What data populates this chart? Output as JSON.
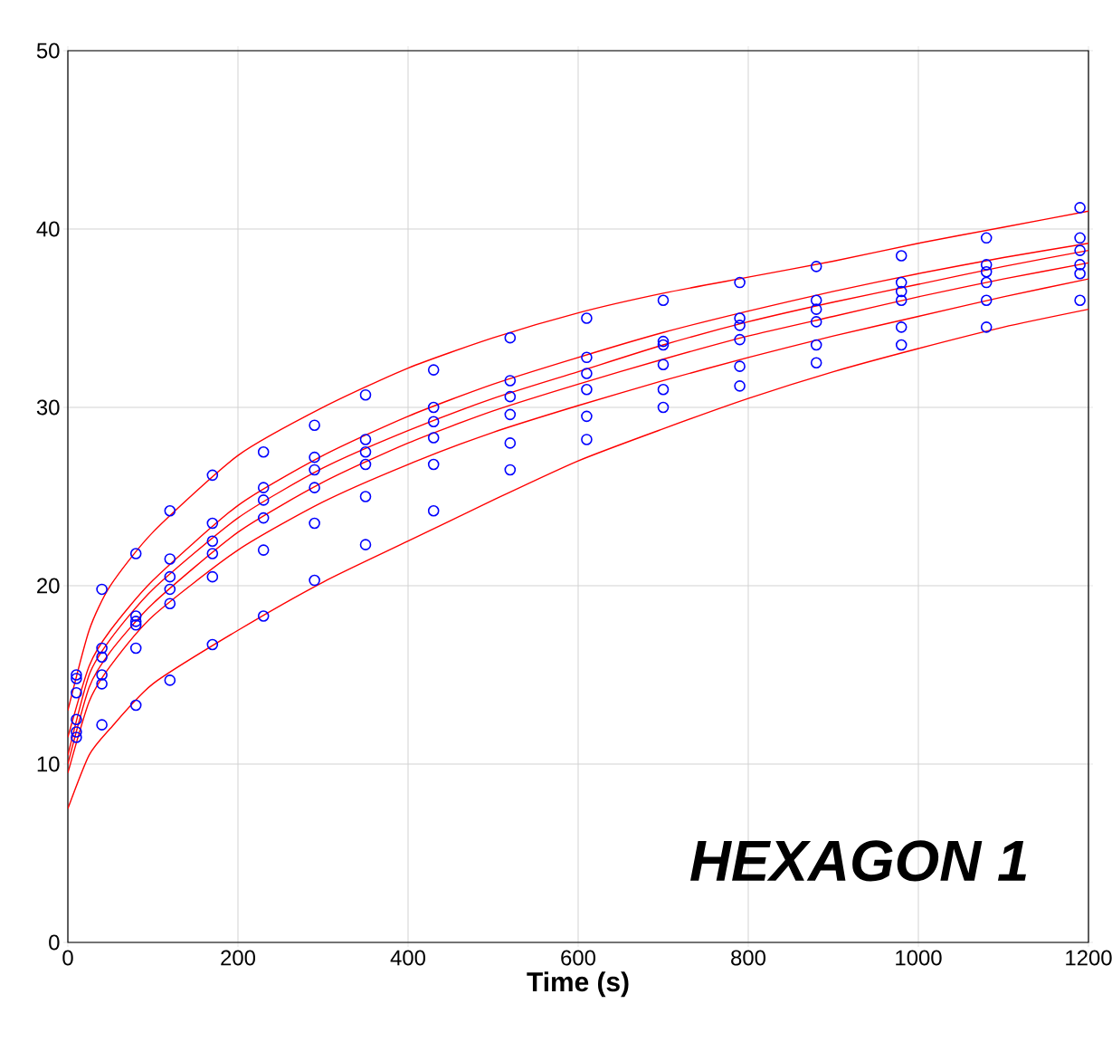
{
  "chart_data": {
    "type": "scatter",
    "xlabel": "Time (s)",
    "annotations": [
      "HEXAGON 1"
    ],
    "xlim": [
      0,
      1200
    ],
    "ylim": [
      0,
      50
    ],
    "xticks": [
      0,
      200,
      400,
      600,
      800,
      1000,
      1200
    ],
    "yticks": [
      0,
      10,
      20,
      30,
      40,
      50
    ],
    "grid": true,
    "series": [
      {
        "marker": "circle",
        "color": "#0000ff",
        "x": [
          10,
          40,
          80,
          120,
          170,
          230,
          290,
          350,
          430,
          520,
          610,
          700,
          790,
          880,
          980,
          1080,
          1190
        ],
        "values": [
          15,
          19.8,
          21.8,
          24.2,
          26.2,
          27.5,
          29,
          30.7,
          32.1,
          33.9,
          35,
          36,
          37,
          37.9,
          38.5,
          39.5,
          41.2
        ]
      },
      {
        "marker": "circle",
        "color": "#0000ff",
        "x": [
          10,
          40,
          80,
          120,
          170,
          230,
          290,
          350,
          430,
          520,
          610,
          700,
          790,
          880,
          980,
          1080,
          1190
        ],
        "values": [
          14.8,
          16.5,
          18.3,
          21.5,
          23.5,
          25.5,
          27.2,
          28.2,
          30,
          31.5,
          32.8,
          33.7,
          35,
          36,
          37,
          38,
          39.5
        ]
      },
      {
        "marker": "circle",
        "color": "#0000ff",
        "x": [
          10,
          40,
          80,
          120,
          170,
          230,
          290,
          350,
          430,
          520,
          610,
          700,
          790,
          880,
          980,
          1080,
          1190
        ],
        "values": [
          14,
          16,
          18,
          20.5,
          22.5,
          24.8,
          26.5,
          27.5,
          29.2,
          30.6,
          31.9,
          33.5,
          34.6,
          35.5,
          36.5,
          37.6,
          38.8
        ]
      },
      {
        "marker": "circle",
        "color": "#0000ff",
        "x": [
          10,
          40,
          80,
          120,
          170,
          230,
          290,
          350,
          430,
          520,
          610,
          700,
          790,
          880,
          980,
          1080,
          1190
        ],
        "values": [
          12.5,
          15,
          17.8,
          19.8,
          21.8,
          23.8,
          25.5,
          26.8,
          28.3,
          29.6,
          31,
          32.4,
          33.8,
          34.8,
          36,
          37,
          38
        ]
      },
      {
        "marker": "circle",
        "color": "#0000ff",
        "x": [
          10,
          40,
          80,
          120,
          170,
          230,
          290,
          350,
          430,
          520,
          610,
          700,
          790,
          880,
          980,
          1080,
          1190
        ],
        "values": [
          11.8,
          14.5,
          16.5,
          19,
          20.5,
          22,
          23.5,
          25,
          26.8,
          28,
          29.5,
          31,
          32.3,
          33.5,
          34.5,
          36,
          37.5
        ]
      },
      {
        "marker": "circle",
        "color": "#0000ff",
        "x": [
          10,
          40,
          80,
          120,
          170,
          230,
          290,
          350,
          430,
          520,
          610,
          700,
          790,
          880,
          980,
          1080,
          1190
        ],
        "values": [
          11.5,
          12.2,
          13.3,
          14.7,
          16.7,
          18.3,
          20.3,
          22.3,
          24.2,
          26.5,
          28.2,
          30,
          31.2,
          32.5,
          33.5,
          34.5,
          36
        ]
      },
      {
        "type": "line",
        "marker": "none",
        "color": "#ff0000",
        "x": [
          0,
          25,
          50,
          100,
          200,
          300,
          400,
          500,
          600,
          700,
          800,
          900,
          1000,
          1100,
          1200
        ],
        "values": [
          13,
          17.5,
          20,
          23,
          27.3,
          30,
          32.2,
          33.9,
          35.3,
          36.4,
          37.3,
          38.2,
          39.2,
          40.1,
          41
        ]
      },
      {
        "type": "line",
        "marker": "none",
        "color": "#ff0000",
        "x": [
          0,
          25,
          50,
          100,
          200,
          300,
          400,
          500,
          600,
          700,
          800,
          900,
          1000,
          1100,
          1200
        ],
        "values": [
          11.5,
          15.5,
          17.5,
          20.3,
          24.5,
          27.3,
          29.5,
          31.3,
          32.8,
          34.2,
          35.4,
          36.5,
          37.5,
          38.4,
          39.2
        ]
      },
      {
        "type": "line",
        "marker": "none",
        "color": "#ff0000",
        "x": [
          0,
          25,
          50,
          100,
          200,
          300,
          400,
          500,
          600,
          700,
          800,
          900,
          1000,
          1100,
          1200
        ],
        "values": [
          10.5,
          15,
          17,
          19.8,
          23.8,
          26.6,
          28.7,
          30.5,
          32,
          33.5,
          34.8,
          35.9,
          36.9,
          37.9,
          38.8
        ]
      },
      {
        "type": "line",
        "marker": "none",
        "color": "#ff0000",
        "x": [
          0,
          25,
          50,
          100,
          200,
          300,
          400,
          500,
          600,
          700,
          800,
          900,
          1000,
          1100,
          1200
        ],
        "values": [
          10,
          14.3,
          16.3,
          19,
          23,
          25.8,
          28,
          29.8,
          31.3,
          32.7,
          34,
          35.1,
          36.2,
          37.2,
          38.1
        ]
      },
      {
        "type": "line",
        "marker": "none",
        "color": "#ff0000",
        "x": [
          0,
          25,
          50,
          100,
          200,
          300,
          400,
          500,
          600,
          700,
          800,
          900,
          1000,
          1100,
          1200
        ],
        "values": [
          9.5,
          13.5,
          15.5,
          18.3,
          22,
          24.7,
          26.8,
          28.6,
          30.1,
          31.5,
          32.8,
          34,
          35.1,
          36.2,
          37.2
        ]
      },
      {
        "type": "line",
        "marker": "none",
        "color": "#ff0000",
        "x": [
          0,
          25,
          50,
          100,
          200,
          300,
          400,
          500,
          600,
          700,
          800,
          900,
          1000,
          1100,
          1200
        ],
        "values": [
          7.5,
          10.5,
          12,
          14.5,
          17.5,
          20.2,
          22.5,
          24.8,
          27,
          28.8,
          30.5,
          32,
          33.3,
          34.5,
          35.5
        ]
      }
    ]
  }
}
